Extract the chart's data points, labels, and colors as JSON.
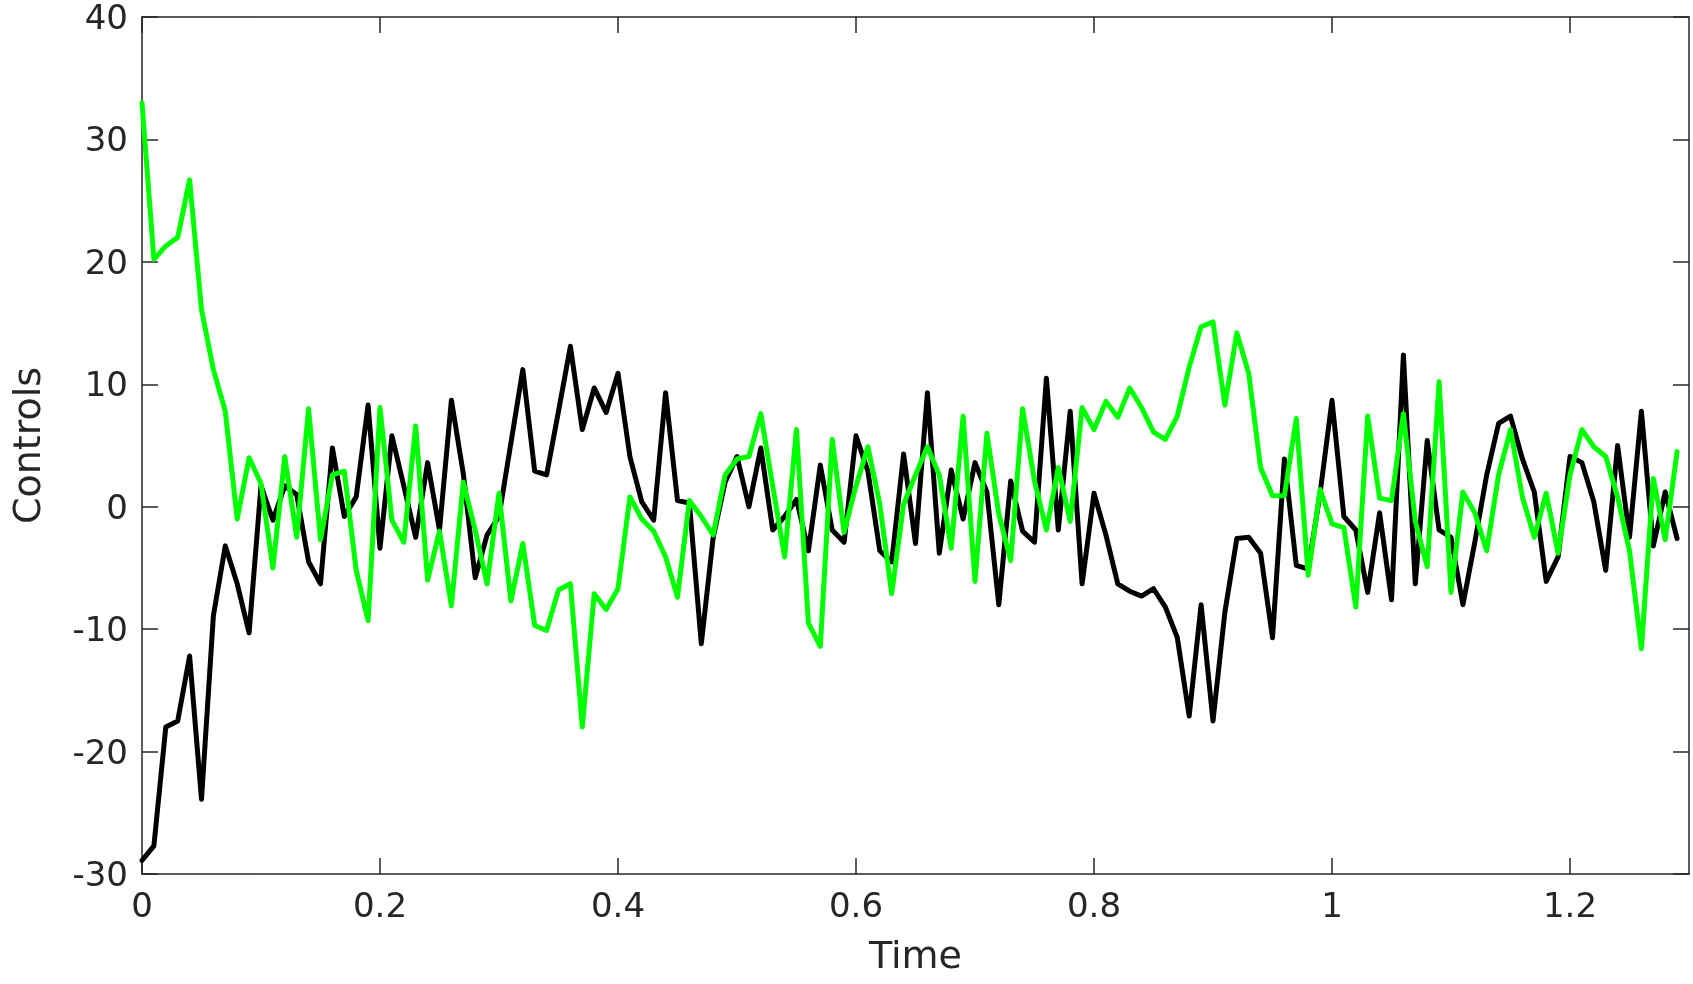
{
  "chart_data": {
    "type": "line",
    "xlabel": "Time",
    "ylabel": "Controls",
    "x": [
      0,
      0.01,
      0.02,
      0.03,
      0.04,
      0.05,
      0.06,
      0.07,
      0.08,
      0.09,
      0.1,
      0.11,
      0.12,
      0.13,
      0.14,
      0.15,
      0.16,
      0.17,
      0.18,
      0.19,
      0.2,
      0.21,
      0.22,
      0.23,
      0.24,
      0.25,
      0.26,
      0.27,
      0.28,
      0.29,
      0.3,
      0.31,
      0.32,
      0.33,
      0.34,
      0.35,
      0.36,
      0.37,
      0.38,
      0.39,
      0.4,
      0.41,
      0.42,
      0.43,
      0.44,
      0.45,
      0.46,
      0.47,
      0.48,
      0.49,
      0.5,
      0.51,
      0.52,
      0.53,
      0.54,
      0.55,
      0.56,
      0.57,
      0.58,
      0.59,
      0.6,
      0.61,
      0.62,
      0.63,
      0.64,
      0.65,
      0.66,
      0.67,
      0.68,
      0.69,
      0.7,
      0.71,
      0.72,
      0.73,
      0.74,
      0.75,
      0.76,
      0.77,
      0.78,
      0.79,
      0.8,
      0.81,
      0.82,
      0.83,
      0.84,
      0.85,
      0.86,
      0.87,
      0.88,
      0.89,
      0.9,
      0.91,
      0.92,
      0.93,
      0.94,
      0.95,
      0.96,
      0.97,
      0.98,
      0.99,
      1,
      1.01,
      1.02,
      1.03,
      1.04,
      1.05,
      1.06,
      1.07,
      1.08,
      1.09,
      1.1,
      1.11,
      1.12,
      1.13,
      1.14,
      1.15,
      1.16,
      1.17,
      1.18,
      1.19,
      1.2,
      1.21,
      1.22,
      1.23,
      1.24,
      1.25,
      1.26,
      1.27,
      1.28,
      1.29
    ],
    "series": [
      {
        "color": "#000000",
        "values": [
          -28.9,
          -27.7,
          -18,
          -17.5,
          -12.2,
          -23.9,
          -8.9,
          -3.2,
          -6.3,
          -10.3,
          1.7,
          -1.1,
          1.7,
          1,
          -4.5,
          -6.3,
          4.8,
          -0.8,
          0.8,
          8.3,
          -3.4,
          5.8,
          1.7,
          -2.5,
          3.6,
          -1.9,
          8.7,
          2.7,
          -5.8,
          -2.3,
          -0.8,
          5.2,
          11.2,
          2.9,
          2.6,
          7.8,
          13.1,
          6.3,
          9.7,
          7.7,
          10.9,
          4.1,
          0.4,
          -1.1,
          9.3,
          0.5,
          0.3,
          -11.2,
          -2.5,
          2,
          4.1,
          0,
          4.8,
          -1.9,
          -0.8,
          0.6,
          -3.6,
          3.4,
          -1.9,
          -2.9,
          5.8,
          2.9,
          -3.6,
          -4.5,
          4.3,
          -3,
          9.3,
          -3.8,
          3,
          -1,
          3.6,
          1.2,
          -8,
          2.1,
          -2,
          -2.9,
          10.5,
          -1.9,
          7.8,
          -6.3,
          1.1,
          -2.3,
          -6.3,
          -6.9,
          -7.3,
          -6.7,
          -8.2,
          -10.7,
          -17.1,
          -8,
          -17.5,
          -8.6,
          -2.6,
          -2.5,
          -3.8,
          -10.7,
          3.9,
          -4.8,
          -5.1,
          1.1,
          8.7,
          -0.8,
          -1.9,
          -7,
          -0.5,
          -7.6,
          12.4,
          -6.3,
          5.4,
          -1.9,
          -2.5,
          -8,
          -2.9,
          2.6,
          6.8,
          7.4,
          3.9,
          1.2,
          -6.1,
          -4.1,
          4.1,
          3.6,
          0.4,
          -5.2,
          5,
          -2.5,
          7.8,
          -3.2,
          1.2,
          -2.6
        ]
      },
      {
        "color": "#00ff00",
        "values": [
          33,
          20.2,
          21.3,
          22,
          26.7,
          16.1,
          11.2,
          7.8,
          -1,
          4,
          1.9,
          -5,
          4.1,
          -2.5,
          8,
          -2.7,
          2.6,
          2.9,
          -5.2,
          -9.3,
          8.1,
          -1.1,
          -2.9,
          6.6,
          -6,
          -2,
          -8.1,
          2,
          -1.9,
          -6.3,
          1.1,
          -7.7,
          -3,
          -9.7,
          -10.1,
          -6.8,
          -6.3,
          -18,
          -7.1,
          -8.4,
          -6.7,
          0.8,
          -1,
          -2,
          -4.1,
          -7.4,
          0.5,
          -0.8,
          -2.3,
          2.6,
          3.9,
          4.1,
          7.6,
          1.7,
          -4.1,
          6.3,
          -9.5,
          -11.4,
          5.5,
          -2.1,
          1.7,
          4.9,
          0.2,
          -7.1,
          0.2,
          2.6,
          4.9,
          2.6,
          -3.4,
          7.4,
          -6.1,
          6,
          -0.6,
          -4.4,
          8,
          2.1,
          -1.9,
          3.2,
          -1.2,
          8.1,
          6.3,
          8.6,
          7.3,
          9.7,
          8.1,
          6.1,
          5.5,
          7.4,
          11.4,
          14.7,
          15.1,
          8.3,
          14.2,
          10.9,
          3.2,
          0.9,
          0.9,
          7.2,
          -5.6,
          1.4,
          -1.4,
          -1.7,
          -8.2,
          7.4,
          0.7,
          0.5,
          7.6,
          -1.2,
          -4.9,
          10.2,
          -7,
          1.2,
          -0.5,
          -3.6,
          2.6,
          6.3,
          0.8,
          -2.5,
          1.1,
          -3.8,
          2.6,
          6.3,
          4.9,
          4.1,
          0.8,
          -3.6,
          -11.6,
          2.3,
          -2.7,
          4.5
        ]
      }
    ],
    "xlim": [
      0,
      1.3
    ],
    "xticks": [
      0,
      0.2,
      0.4,
      0.6,
      0.8,
      1,
      1.2
    ],
    "ylim": [
      -30,
      40
    ],
    "yticks": [
      -30,
      -20,
      -10,
      0,
      10,
      20,
      30,
      40
    ],
    "grid": false,
    "marker": "none",
    "line_style": "solid"
  }
}
